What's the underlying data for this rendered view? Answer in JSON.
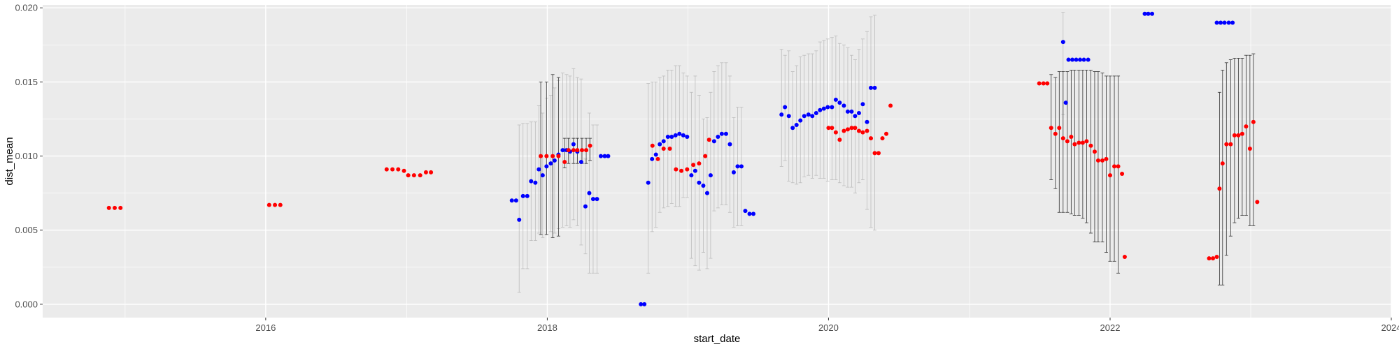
{
  "chart_data": {
    "type": "scatter",
    "xlabel": "start_date",
    "ylabel": "dist_mean",
    "x_ticks": [
      "2016",
      "2018",
      "2020",
      "2022",
      "2024"
    ],
    "y_ticks": [
      "0.000",
      "0.005",
      "0.010",
      "0.015",
      "0.020"
    ],
    "xlim": [
      "2014-06-01",
      "2024-01-01"
    ],
    "ylim": [
      -0.0009,
      0.0202
    ],
    "grid": true,
    "legend": "none",
    "colors": {
      "red_series": "#ff0000",
      "blue_series": "#0000ff",
      "errorbar_light": "#bdbdbd",
      "errorbar_dark": "#333333",
      "panel": "#ebebeb",
      "grid": "#ffffff"
    },
    "red_points": [
      {
        "x": "2014-11-20",
        "y": 0.0065
      },
      {
        "x": "2014-12-05",
        "y": 0.0065
      },
      {
        "x": "2014-12-20",
        "y": 0.0065
      },
      {
        "x": "2016-01-10",
        "y": 0.0067
      },
      {
        "x": "2016-01-25",
        "y": 0.0067
      },
      {
        "x": "2016-02-08",
        "y": 0.0067
      },
      {
        "x": "2016-11-10",
        "y": 0.0091
      },
      {
        "x": "2016-11-25",
        "y": 0.0091
      },
      {
        "x": "2016-12-10",
        "y": 0.0091
      },
      {
        "x": "2016-12-25",
        "y": 0.009
      },
      {
        "x": "2017-01-05",
        "y": 0.0087
      },
      {
        "x": "2017-01-20",
        "y": 0.0087
      },
      {
        "x": "2017-02-05",
        "y": 0.0087
      },
      {
        "x": "2017-02-20",
        "y": 0.0089
      },
      {
        "x": "2017-03-05",
        "y": 0.0089
      },
      {
        "x": "2017-12-15",
        "y": 0.01,
        "lo": 0.0047,
        "hi": 0.015
      },
      {
        "x": "2017-12-30",
        "y": 0.01,
        "lo": 0.0047,
        "hi": 0.015
      },
      {
        "x": "2018-01-15",
        "y": 0.01,
        "lo": 0.0045,
        "hi": 0.0155
      },
      {
        "x": "2018-01-30",
        "y": 0.01,
        "lo": 0.0046,
        "hi": 0.0153
      },
      {
        "x": "2018-02-15",
        "y": 0.0096,
        "lo": 0.0092,
        "hi": 0.0112
      },
      {
        "x": "2018-02-25",
        "y": 0.0104,
        "lo": 0.0095,
        "hi": 0.0112
      },
      {
        "x": "2018-03-10",
        "y": 0.0104,
        "lo": 0.0095,
        "hi": 0.0112
      },
      {
        "x": "2018-03-20",
        "y": 0.0104,
        "lo": 0.0095,
        "hi": 0.0112
      },
      {
        "x": "2018-04-01",
        "y": 0.0104,
        "lo": 0.0095,
        "hi": 0.0112
      },
      {
        "x": "2018-04-12",
        "y": 0.0104,
        "lo": 0.0095,
        "hi": 0.0112
      },
      {
        "x": "2018-04-22",
        "y": 0.0107,
        "lo": 0.0097,
        "hi": 0.0112
      },
      {
        "x": "2018-10-01",
        "y": 0.0107
      },
      {
        "x": "2018-10-15",
        "y": 0.0098
      },
      {
        "x": "2018-10-30",
        "y": 0.0105
      },
      {
        "x": "2018-11-15",
        "y": 0.0105
      },
      {
        "x": "2018-12-01",
        "y": 0.0091
      },
      {
        "x": "2018-12-15",
        "y": 0.009
      },
      {
        "x": "2018-12-30",
        "y": 0.0091
      },
      {
        "x": "2019-01-15",
        "y": 0.0094
      },
      {
        "x": "2019-01-30",
        "y": 0.0095
      },
      {
        "x": "2019-02-15",
        "y": 0.01
      },
      {
        "x": "2019-02-25",
        "y": 0.0111
      },
      {
        "x": "2020-01-01",
        "y": 0.0119
      },
      {
        "x": "2020-01-10",
        "y": 0.0119
      },
      {
        "x": "2020-01-20",
        "y": 0.0116
      },
      {
        "x": "2020-01-30",
        "y": 0.0111
      },
      {
        "x": "2020-02-10",
        "y": 0.0117
      },
      {
        "x": "2020-02-20",
        "y": 0.0118
      },
      {
        "x": "2020-03-01",
        "y": 0.0119
      },
      {
        "x": "2020-03-10",
        "y": 0.0119
      },
      {
        "x": "2020-03-20",
        "y": 0.0117
      },
      {
        "x": "2020-03-30",
        "y": 0.0116
      },
      {
        "x": "2020-04-10",
        "y": 0.0117
      },
      {
        "x": "2020-04-20",
        "y": 0.0112
      },
      {
        "x": "2020-04-30",
        "y": 0.0102
      },
      {
        "x": "2020-05-10",
        "y": 0.0102
      },
      {
        "x": "2020-05-20",
        "y": 0.0112
      },
      {
        "x": "2020-05-30",
        "y": 0.0115
      },
      {
        "x": "2020-06-10",
        "y": 0.0134
      },
      {
        "x": "2021-07-01",
        "y": 0.0149
      },
      {
        "x": "2021-07-12",
        "y": 0.0149
      },
      {
        "x": "2021-07-22",
        "y": 0.0149
      },
      {
        "x": "2021-08-01",
        "y": 0.0119,
        "lo": 0.0084,
        "hi": 0.0155
      },
      {
        "x": "2021-08-12",
        "y": 0.0115,
        "lo": 0.0078,
        "hi": 0.0153
      },
      {
        "x": "2021-08-22",
        "y": 0.0119,
        "lo": 0.0062,
        "hi": 0.0157
      },
      {
        "x": "2021-09-01",
        "y": 0.0112,
        "lo": 0.0062,
        "hi": 0.0157
      },
      {
        "x": "2021-09-12",
        "y": 0.011,
        "lo": 0.0062,
        "hi": 0.0157
      },
      {
        "x": "2021-09-22",
        "y": 0.0113,
        "lo": 0.0061,
        "hi": 0.0158
      },
      {
        "x": "2021-10-01",
        "y": 0.0108,
        "lo": 0.006,
        "hi": 0.0158
      },
      {
        "x": "2021-10-12",
        "y": 0.0109,
        "lo": 0.006,
        "hi": 0.0158
      },
      {
        "x": "2021-10-22",
        "y": 0.0109,
        "lo": 0.0058,
        "hi": 0.0158
      },
      {
        "x": "2021-11-01",
        "y": 0.011,
        "lo": 0.0055,
        "hi": 0.0158
      },
      {
        "x": "2021-11-12",
        "y": 0.0107,
        "lo": 0.0048,
        "hi": 0.0158
      },
      {
        "x": "2021-11-22",
        "y": 0.0103,
        "lo": 0.0042,
        "hi": 0.0157
      },
      {
        "x": "2021-12-01",
        "y": 0.0097,
        "lo": 0.0042,
        "hi": 0.0157
      },
      {
        "x": "2021-12-12",
        "y": 0.0097,
        "lo": 0.0042,
        "hi": 0.0156
      },
      {
        "x": "2021-12-22",
        "y": 0.0098,
        "lo": 0.0035,
        "hi": 0.0154
      },
      {
        "x": "2022-01-01",
        "y": 0.0087,
        "lo": 0.0029,
        "hi": 0.0154
      },
      {
        "x": "2022-01-12",
        "y": 0.0093,
        "lo": 0.0029,
        "hi": 0.0154
      },
      {
        "x": "2022-01-22",
        "y": 0.0093,
        "lo": 0.0021,
        "hi": 0.0154
      },
      {
        "x": "2022-02-01",
        "y": 0.0088
      },
      {
        "x": "2022-02-08",
        "y": 0.0032
      },
      {
        "x": "2022-09-15",
        "y": 0.0031
      },
      {
        "x": "2022-09-25",
        "y": 0.0031
      },
      {
        "x": "2022-10-05",
        "y": 0.0032
      },
      {
        "x": "2022-10-12",
        "y": 0.0078,
        "lo": 0.0013,
        "hi": 0.0143
      },
      {
        "x": "2022-10-20",
        "y": 0.0095,
        "lo": 0.0013,
        "hi": 0.0158
      },
      {
        "x": "2022-10-30",
        "y": 0.0108,
        "lo": 0.0033,
        "hi": 0.0163
      },
      {
        "x": "2022-11-10",
        "y": 0.0108,
        "lo": 0.0046,
        "hi": 0.0165
      },
      {
        "x": "2022-11-20",
        "y": 0.0114,
        "lo": 0.0055,
        "hi": 0.0166
      },
      {
        "x": "2022-11-30",
        "y": 0.0114,
        "lo": 0.0058,
        "hi": 0.0166
      },
      {
        "x": "2022-12-10",
        "y": 0.0115,
        "lo": 0.006,
        "hi": 0.0166
      },
      {
        "x": "2022-12-20",
        "y": 0.012,
        "lo": 0.006,
        "hi": 0.0168
      },
      {
        "x": "2022-12-30",
        "y": 0.0105,
        "lo": 0.0053,
        "hi": 0.0168
      },
      {
        "x": "2023-01-08",
        "y": 0.0123,
        "lo": 0.0053,
        "hi": 0.0169
      },
      {
        "x": "2023-01-18",
        "y": 0.0069
      }
    ],
    "blue_points": [
      {
        "x": "2017-10-01",
        "y": 0.007
      },
      {
        "x": "2017-10-12",
        "y": 0.007
      },
      {
        "x": "2017-10-20",
        "y": 0.0057,
        "lo": 0.0008,
        "hi": 0.0121
      },
      {
        "x": "2017-10-30",
        "y": 0.0073,
        "lo": 0.0024,
        "hi": 0.0122
      },
      {
        "x": "2017-11-10",
        "y": 0.0073,
        "lo": 0.0024,
        "hi": 0.0122
      },
      {
        "x": "2017-11-20",
        "y": 0.0083,
        "lo": 0.0043,
        "hi": 0.0123
      },
      {
        "x": "2017-12-01",
        "y": 0.0082,
        "lo": 0.0043,
        "hi": 0.0123
      },
      {
        "x": "2017-12-10",
        "y": 0.0091,
        "lo": 0.0048,
        "hi": 0.0134
      },
      {
        "x": "2017-12-20",
        "y": 0.0087,
        "lo": 0.0045,
        "hi": 0.0129
      },
      {
        "x": "2017-12-30",
        "y": 0.0093,
        "lo": 0.0047,
        "hi": 0.0139
      },
      {
        "x": "2018-01-10",
        "y": 0.0095,
        "lo": 0.0049,
        "hi": 0.0141
      },
      {
        "x": "2018-01-20",
        "y": 0.0097,
        "lo": 0.0048,
        "hi": 0.0146
      },
      {
        "x": "2018-01-30",
        "y": 0.0101,
        "lo": 0.0051,
        "hi": 0.0151
      },
      {
        "x": "2018-02-10",
        "y": 0.0104,
        "lo": 0.0052,
        "hi": 0.0156
      },
      {
        "x": "2018-02-20",
        "y": 0.0104,
        "lo": 0.0053,
        "hi": 0.0155
      },
      {
        "x": "2018-03-01",
        "y": 0.0103,
        "lo": 0.0052,
        "hi": 0.0154
      },
      {
        "x": "2018-03-10",
        "y": 0.0108,
        "lo": 0.0057,
        "hi": 0.0159
      },
      {
        "x": "2018-03-20",
        "y": 0.0103,
        "lo": 0.0053,
        "hi": 0.0153
      },
      {
        "x": "2018-03-30",
        "y": 0.0096,
        "lo": 0.004,
        "hi": 0.0152
      },
      {
        "x": "2018-04-10",
        "y": 0.0066,
        "lo": 0.0034,
        "hi": 0.0098
      },
      {
        "x": "2018-04-20",
        "y": 0.0075,
        "lo": 0.0021,
        "hi": 0.0129
      },
      {
        "x": "2018-04-30",
        "y": 0.0071,
        "lo": 0.0021,
        "hi": 0.0121
      },
      {
        "x": "2018-05-10",
        "y": 0.0071,
        "lo": 0.0021,
        "hi": 0.0121
      },
      {
        "x": "2018-05-20",
        "y": 0.01
      },
      {
        "x": "2018-05-30",
        "y": 0.01
      },
      {
        "x": "2018-06-08",
        "y": 0.01
      },
      {
        "x": "2018-09-01",
        "y": 0.0
      },
      {
        "x": "2018-09-10",
        "y": 0.0
      },
      {
        "x": "2018-09-20",
        "y": 0.0082,
        "lo": 0.0021,
        "hi": 0.0149
      },
      {
        "x": "2018-09-30",
        "y": 0.0098,
        "lo": 0.0049,
        "hi": 0.015
      },
      {
        "x": "2018-10-10",
        "y": 0.0101,
        "lo": 0.0052,
        "hi": 0.015
      },
      {
        "x": "2018-10-20",
        "y": 0.0108,
        "lo": 0.0062,
        "hi": 0.0153
      },
      {
        "x": "2018-10-30",
        "y": 0.011,
        "lo": 0.0065,
        "hi": 0.0154
      },
      {
        "x": "2018-11-10",
        "y": 0.0113,
        "lo": 0.0066,
        "hi": 0.0158
      },
      {
        "x": "2018-11-20",
        "y": 0.0113,
        "lo": 0.0068,
        "hi": 0.0158
      },
      {
        "x": "2018-11-30",
        "y": 0.0114,
        "lo": 0.0066,
        "hi": 0.0161
      },
      {
        "x": "2018-12-10",
        "y": 0.0115,
        "lo": 0.0066,
        "hi": 0.0161
      },
      {
        "x": "2018-12-20",
        "y": 0.0114,
        "lo": 0.0072,
        "hi": 0.0156
      },
      {
        "x": "2018-12-30",
        "y": 0.0113,
        "lo": 0.0072,
        "hi": 0.0154
      },
      {
        "x": "2019-01-10",
        "y": 0.0087,
        "lo": 0.0031,
        "hi": 0.0143
      },
      {
        "x": "2019-01-20",
        "y": 0.009,
        "lo": 0.0026,
        "hi": 0.0154
      },
      {
        "x": "2019-01-30",
        "y": 0.0082,
        "lo": 0.0023,
        "hi": 0.0141
      },
      {
        "x": "2019-02-10",
        "y": 0.008,
        "lo": 0.0035,
        "hi": 0.0125
      },
      {
        "x": "2019-02-20",
        "y": 0.0075,
        "lo": 0.0024,
        "hi": 0.0126
      },
      {
        "x": "2019-03-01",
        "y": 0.0087,
        "lo": 0.0031,
        "hi": 0.0143
      },
      {
        "x": "2019-03-10",
        "y": 0.011,
        "lo": 0.0063,
        "hi": 0.0157
      },
      {
        "x": "2019-03-20",
        "y": 0.0113,
        "lo": 0.0065,
        "hi": 0.0161
      },
      {
        "x": "2019-03-30",
        "y": 0.0115,
        "lo": 0.0067,
        "hi": 0.0163
      },
      {
        "x": "2019-04-10",
        "y": 0.0115,
        "lo": 0.0067,
        "hi": 0.0163
      },
      {
        "x": "2019-04-20",
        "y": 0.0108,
        "lo": 0.0062,
        "hi": 0.0154
      },
      {
        "x": "2019-04-30",
        "y": 0.0089,
        "lo": 0.0052,
        "hi": 0.0126
      },
      {
        "x": "2019-05-10",
        "y": 0.0093,
        "lo": 0.0053,
        "hi": 0.0133
      },
      {
        "x": "2019-05-20",
        "y": 0.0093,
        "lo": 0.0053,
        "hi": 0.0133
      },
      {
        "x": "2019-05-30",
        "y": 0.0063
      },
      {
        "x": "2019-06-10",
        "y": 0.0061
      },
      {
        "x": "2019-06-20",
        "y": 0.0061
      },
      {
        "x": "2019-09-01",
        "y": 0.0128,
        "lo": 0.0093,
        "hi": 0.0172
      },
      {
        "x": "2019-09-10",
        "y": 0.0133,
        "lo": 0.0097,
        "hi": 0.0168
      },
      {
        "x": "2019-09-20",
        "y": 0.0127,
        "lo": 0.0083,
        "hi": 0.0171
      },
      {
        "x": "2019-09-30",
        "y": 0.0119,
        "lo": 0.0082,
        "hi": 0.0157
      },
      {
        "x": "2019-10-10",
        "y": 0.0121,
        "lo": 0.0081,
        "hi": 0.0161
      },
      {
        "x": "2019-10-20",
        "y": 0.0124,
        "lo": 0.0082,
        "hi": 0.0167
      },
      {
        "x": "2019-10-30",
        "y": 0.0127,
        "lo": 0.0086,
        "hi": 0.0168
      },
      {
        "x": "2019-11-10",
        "y": 0.0128,
        "lo": 0.0087,
        "hi": 0.0169
      },
      {
        "x": "2019-11-20",
        "y": 0.0127,
        "lo": 0.0085,
        "hi": 0.0169
      },
      {
        "x": "2019-11-30",
        "y": 0.0129,
        "lo": 0.0087,
        "hi": 0.0171
      },
      {
        "x": "2019-12-10",
        "y": 0.0131,
        "lo": 0.0085,
        "hi": 0.0177
      },
      {
        "x": "2019-12-20",
        "y": 0.0132,
        "lo": 0.0085,
        "hi": 0.0178
      },
      {
        "x": "2019-12-30",
        "y": 0.0133,
        "lo": 0.0083,
        "hi": 0.0179
      },
      {
        "x": "2020-01-10",
        "y": 0.0133,
        "lo": 0.0084,
        "hi": 0.018
      },
      {
        "x": "2020-01-20",
        "y": 0.0138,
        "lo": 0.0084,
        "hi": 0.0181
      },
      {
        "x": "2020-01-30",
        "y": 0.0136,
        "lo": 0.0082,
        "hi": 0.0176
      },
      {
        "x": "2020-02-10",
        "y": 0.0134,
        "lo": 0.008,
        "hi": 0.0175
      },
      {
        "x": "2020-02-20",
        "y": 0.013,
        "lo": 0.0079,
        "hi": 0.0173
      },
      {
        "x": "2020-03-01",
        "y": 0.013,
        "lo": 0.0079,
        "hi": 0.0168
      },
      {
        "x": "2020-03-10",
        "y": 0.0127,
        "lo": 0.0075,
        "hi": 0.0165
      },
      {
        "x": "2020-03-20",
        "y": 0.0129,
        "lo": 0.0082,
        "hi": 0.0172
      },
      {
        "x": "2020-03-30",
        "y": 0.0135,
        "lo": 0.0084,
        "hi": 0.0179
      },
      {
        "x": "2020-04-10",
        "y": 0.0123,
        "lo": 0.0064,
        "hi": 0.0184
      },
      {
        "x": "2020-04-20",
        "y": 0.0146,
        "lo": 0.0052,
        "hi": 0.0194
      },
      {
        "x": "2020-04-30",
        "y": 0.0146,
        "lo": 0.005,
        "hi": 0.0195
      },
      {
        "x": "2021-09-01",
        "y": 0.0177,
        "lo": 0.0128,
        "hi": 0.0197
      },
      {
        "x": "2021-09-08",
        "y": 0.0136
      },
      {
        "x": "2021-09-15",
        "y": 0.0165
      },
      {
        "x": "2021-09-25",
        "y": 0.0165
      },
      {
        "x": "2021-10-05",
        "y": 0.0165
      },
      {
        "x": "2021-10-15",
        "y": 0.0165
      },
      {
        "x": "2021-10-25",
        "y": 0.0165
      },
      {
        "x": "2021-11-05",
        "y": 0.0165
      },
      {
        "x": "2022-04-01",
        "y": 0.0196
      },
      {
        "x": "2022-04-10",
        "y": 0.0196
      },
      {
        "x": "2022-04-20",
        "y": 0.0196
      },
      {
        "x": "2022-10-05",
        "y": 0.019
      },
      {
        "x": "2022-10-15",
        "y": 0.019
      },
      {
        "x": "2022-10-25",
        "y": 0.019
      },
      {
        "x": "2022-11-05",
        "y": 0.019
      },
      {
        "x": "2022-11-15",
        "y": 0.019
      }
    ]
  }
}
